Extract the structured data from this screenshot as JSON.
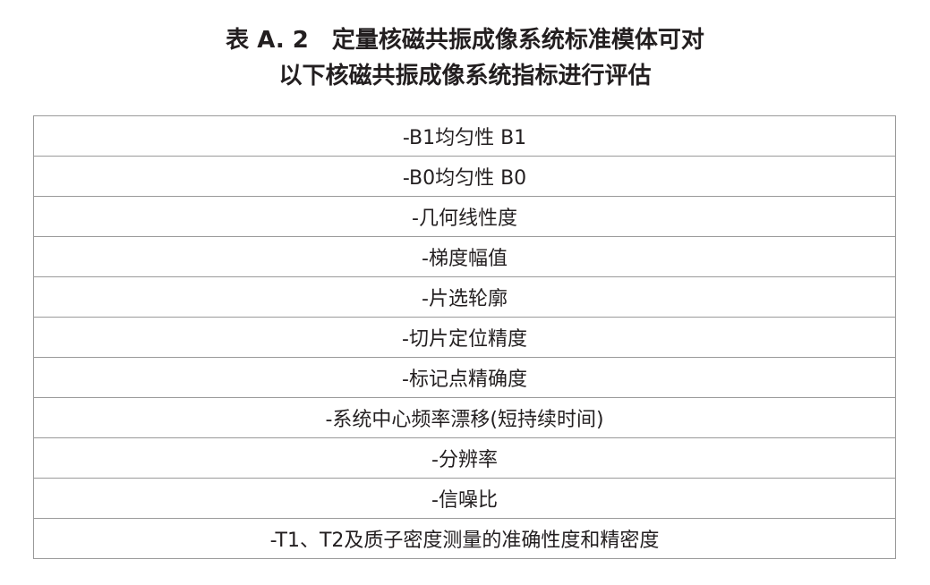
{
  "header": {
    "title_lines": [
      "表 A. 2　定量核磁共振成像系统标准模体可对",
      "以下核磁共振成像系统指标进行评估"
    ]
  },
  "table": {
    "rows": [
      [
        "-B1均匀性 B1"
      ],
      [
        "-B0均匀性 B0"
      ],
      [
        "-几何线性度"
      ],
      [
        "-梯度幅值"
      ],
      [
        "-片选轮廓"
      ],
      [
        "-切片定位精度"
      ],
      [
        "-标记点精确度"
      ],
      [
        "-系统中心频率漂移(短持续时间)"
      ],
      [
        "-分辨率"
      ],
      [
        "-信噪比"
      ],
      [
        "-T1、T2及质子密度测量的准确性度和精密度"
      ]
    ]
  }
}
